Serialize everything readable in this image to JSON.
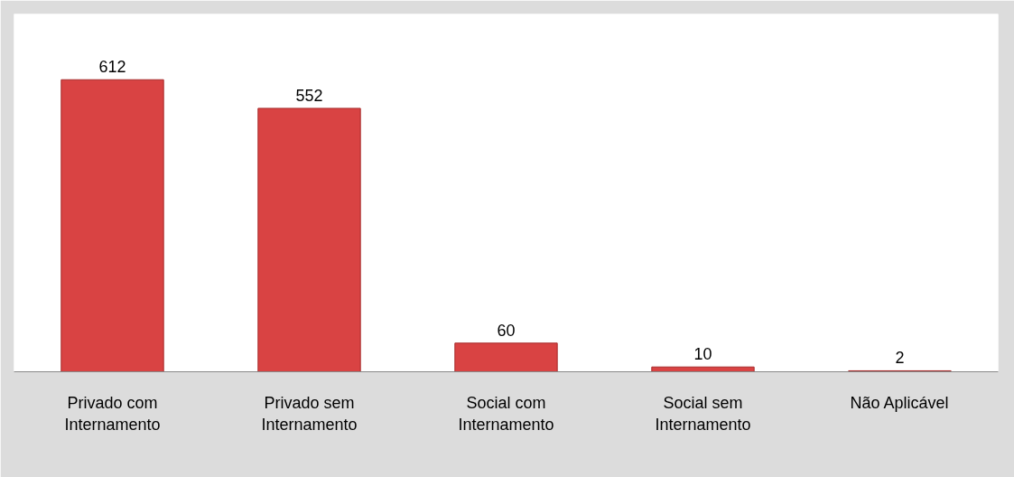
{
  "chart_data": {
    "type": "bar",
    "categories": [
      "Privado com Internamento",
      "Privado sem Internamento",
      "Social com Internamento",
      "Social sem Internamento",
      "Não Aplicável"
    ],
    "values": [
      612,
      552,
      60,
      10,
      2
    ],
    "color": "#d94343",
    "data_labels": true,
    "grid": false
  }
}
